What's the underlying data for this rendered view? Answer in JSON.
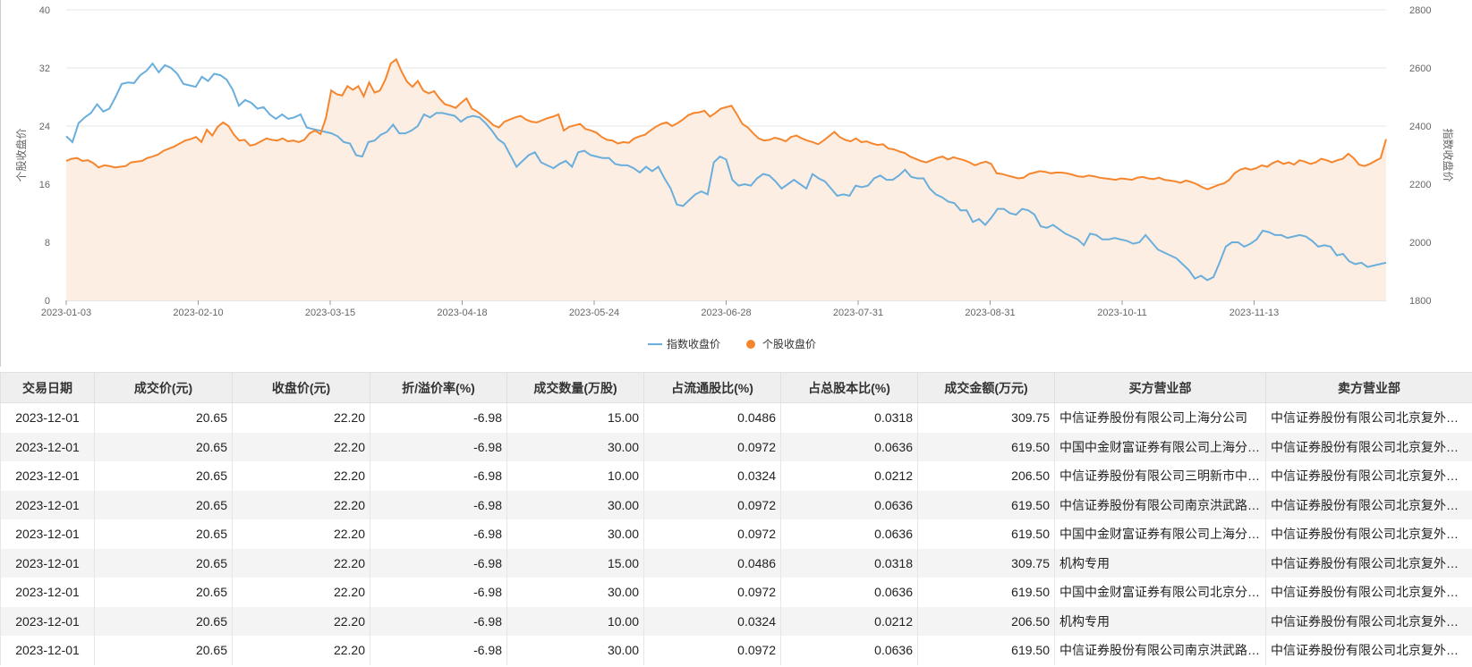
{
  "chart_data": {
    "type": "line",
    "x_ticks": [
      "2023-01-03",
      "2023-02-10",
      "2023-03-15",
      "2023-04-18",
      "2023-05-24",
      "2023-06-28",
      "2023-07-31",
      "2023-08-31",
      "2023-10-11",
      "2023-11-13"
    ],
    "ylabel_left": "个股收盘价",
    "ylabel_right": "指数收盘价",
    "ylim_left": [
      0,
      40
    ],
    "ylim_right": [
      1800,
      2800
    ],
    "yticks_left": [
      0,
      8,
      16,
      24,
      32,
      40
    ],
    "yticks_right": [
      1800,
      2000,
      2200,
      2400,
      2600,
      2800
    ],
    "legend_position": "bottom-center",
    "grid": true,
    "series": [
      {
        "name": "指数收盘价",
        "axis": "right",
        "color": "#6aaedc",
        "values": [
          2365,
          2345,
          2410,
          2430,
          2445,
          2475,
          2450,
          2460,
          2500,
          2545,
          2550,
          2548,
          2575,
          2590,
          2615,
          2585,
          2610,
          2600,
          2580,
          2545,
          2540,
          2535,
          2570,
          2555,
          2580,
          2575,
          2560,
          2525,
          2470,
          2490,
          2480,
          2460,
          2465,
          2440,
          2425,
          2440,
          2425,
          2430,
          2440,
          2395,
          2390,
          2385,
          2380,
          2375,
          2365,
          2345,
          2340,
          2300,
          2295,
          2345,
          2350,
          2370,
          2380,
          2405,
          2375,
          2375,
          2385,
          2400,
          2440,
          2430,
          2445,
          2445,
          2440,
          2435,
          2415,
          2430,
          2435,
          2430,
          2410,
          2385,
          2355,
          2340,
          2300,
          2260,
          2280,
          2300,
          2310,
          2275,
          2265,
          2255,
          2270,
          2280,
          2260,
          2310,
          2315,
          2300,
          2295,
          2290,
          2290,
          2270,
          2265,
          2265,
          2255,
          2240,
          2260,
          2245,
          2260,
          2220,
          2185,
          2130,
          2125,
          2145,
          2165,
          2175,
          2165,
          2275,
          2295,
          2285,
          2215,
          2195,
          2200,
          2195,
          2220,
          2235,
          2230,
          2210,
          2185,
          2200,
          2215,
          2200,
          2185,
          2235,
          2220,
          2210,
          2185,
          2160,
          2165,
          2160,
          2195,
          2190,
          2195,
          2220,
          2230,
          2215,
          2215,
          2230,
          2250,
          2225,
          2220,
          2220,
          2185,
          2165,
          2155,
          2140,
          2135,
          2110,
          2110,
          2070,
          2080,
          2060,
          2085,
          2115,
          2115,
          2100,
          2095,
          2115,
          2110,
          2095,
          2055,
          2050,
          2060,
          2045,
          2030,
          2020,
          2010,
          1990,
          2030,
          2025,
          2010,
          2010,
          2015,
          2010,
          2005,
          1995,
          2000,
          2025,
          2000,
          1975,
          1965,
          1955,
          1945,
          1925,
          1905,
          1875,
          1885,
          1870,
          1880,
          1930,
          1985,
          2000,
          2000,
          1985,
          1995,
          2010,
          2040,
          2035,
          2025,
          2025,
          2015,
          2020,
          2025,
          2020,
          2005,
          1985,
          1990,
          1985,
          1955,
          1960,
          1935,
          1925,
          1930,
          1915,
          1920,
          1925,
          1930
        ]
      },
      {
        "name": "个股收盘价",
        "axis": "left",
        "color": "#f5862e",
        "values": [
          19.2,
          19.5,
          19.6,
          19.2,
          19.3,
          18.9,
          18.3,
          18.6,
          18.5,
          18.3,
          18.4,
          18.5,
          19.0,
          19.1,
          19.2,
          19.6,
          19.8,
          20.1,
          20.6,
          20.9,
          21.2,
          21.6,
          22.0,
          22.2,
          22.5,
          21.8,
          23.5,
          22.7,
          23.9,
          24.5,
          24.0,
          22.8,
          22.0,
          22.1,
          21.3,
          21.5,
          21.9,
          22.3,
          22.1,
          22.0,
          22.3,
          21.9,
          22.0,
          21.8,
          22.1,
          23.0,
          23.4,
          22.9,
          25.1,
          28.9,
          28.4,
          28.2,
          29.5,
          29.0,
          29.5,
          28.1,
          30.0,
          28.6,
          28.9,
          30.4,
          32.6,
          33.2,
          31.5,
          30.1,
          29.4,
          30.2,
          28.9,
          28.5,
          28.8,
          27.8,
          27.0,
          26.8,
          26.5,
          27.2,
          27.8,
          26.4,
          26.0,
          25.4,
          24.8,
          24.1,
          23.8,
          24.6,
          24.9,
          25.2,
          25.4,
          24.9,
          24.6,
          24.5,
          24.8,
          25.1,
          25.3,
          25.6,
          23.4,
          23.9,
          24.1,
          24.3,
          23.6,
          23.4,
          23.1,
          22.5,
          22.1,
          22.0,
          21.6,
          21.8,
          21.7,
          22.3,
          22.6,
          22.8,
          23.4,
          23.9,
          24.3,
          24.5,
          24.0,
          24.4,
          24.9,
          25.5,
          25.8,
          25.9,
          26.1,
          25.3,
          25.8,
          26.4,
          26.6,
          26.8,
          25.6,
          24.3,
          23.8,
          23.0,
          22.3,
          22.0,
          22.1,
          22.4,
          22.2,
          21.9,
          22.5,
          22.7,
          22.3,
          22.0,
          21.8,
          21.5,
          22.0,
          22.6,
          23.2,
          22.5,
          22.1,
          21.9,
          22.3,
          21.8,
          21.9,
          21.6,
          21.4,
          21.5,
          20.9,
          20.8,
          20.5,
          20.3,
          19.8,
          19.5,
          19.2,
          19.0,
          19.3,
          19.6,
          19.8,
          19.4,
          19.7,
          19.5,
          19.3,
          19.0,
          18.6,
          18.9,
          19.1,
          18.8,
          17.5,
          17.4,
          17.2,
          17.0,
          16.8,
          16.9,
          17.4,
          17.6,
          17.8,
          17.7,
          17.5,
          17.6,
          17.6,
          17.5,
          17.3,
          17.1,
          17.0,
          17.2,
          17.1,
          16.9,
          16.8,
          16.7,
          16.6,
          16.8,
          16.7,
          16.6,
          16.9,
          17.0,
          16.8,
          16.7,
          16.9,
          16.6,
          16.5,
          16.4,
          16.2,
          16.5,
          16.3,
          16.0,
          15.6,
          15.3,
          15.6,
          15.9,
          16.1,
          16.6,
          17.5,
          18.0,
          18.2,
          18.0,
          18.2,
          18.6,
          18.4,
          18.9,
          19.2,
          18.8,
          19.0,
          18.7,
          19.3,
          19.1,
          18.8,
          19.0,
          19.5,
          19.3,
          19.0,
          19.3,
          19.5,
          20.2,
          19.6,
          18.7,
          18.5,
          18.8,
          19.2,
          19.6,
          22.2
        ]
      }
    ]
  },
  "table": {
    "headers": [
      "交易日期",
      "成交价(元)",
      "收盘价(元)",
      "折/溢价率(%)",
      "成交数量(万股)",
      "占流通股比(%)",
      "占总股本比(%)",
      "成交金额(万元)",
      "买方营业部",
      "卖方营业部"
    ],
    "rows": [
      [
        "2023-12-01",
        "20.65",
        "22.20",
        "-6.98",
        "15.00",
        "0.0486",
        "0.0318",
        "309.75",
        "中信证券股份有限公司上海分公司",
        "中信证券股份有限公司北京复外大街证券营业部"
      ],
      [
        "2023-12-01",
        "20.65",
        "22.20",
        "-6.98",
        "30.00",
        "0.0972",
        "0.0636",
        "619.50",
        "中国中金财富证券有限公司上海分公司",
        "中信证券股份有限公司北京复外大街证券营业部"
      ],
      [
        "2023-12-01",
        "20.65",
        "22.20",
        "-6.98",
        "10.00",
        "0.0324",
        "0.0212",
        "206.50",
        "中信证券股份有限公司三明新市中路证券营业部",
        "中信证券股份有限公司北京复外大街证券营业部"
      ],
      [
        "2023-12-01",
        "20.65",
        "22.20",
        "-6.98",
        "30.00",
        "0.0972",
        "0.0636",
        "619.50",
        "中信证券股份有限公司南京洪武路证券营业部",
        "中信证券股份有限公司北京复外大街证券营业部"
      ],
      [
        "2023-12-01",
        "20.65",
        "22.20",
        "-6.98",
        "30.00",
        "0.0972",
        "0.0636",
        "619.50",
        "中国中金财富证券有限公司上海分公司",
        "中信证券股份有限公司北京复外大街证券营业部"
      ],
      [
        "2023-12-01",
        "20.65",
        "22.20",
        "-6.98",
        "15.00",
        "0.0486",
        "0.0318",
        "309.75",
        "机构专用",
        "中信证券股份有限公司北京复外大街证券营业部"
      ],
      [
        "2023-12-01",
        "20.65",
        "22.20",
        "-6.98",
        "30.00",
        "0.0972",
        "0.0636",
        "619.50",
        "中国中金财富证券有限公司北京分公司",
        "中信证券股份有限公司北京复外大街证券营业部"
      ],
      [
        "2023-12-01",
        "20.65",
        "22.20",
        "-6.98",
        "10.00",
        "0.0324",
        "0.0212",
        "206.50",
        "机构专用",
        "中信证券股份有限公司北京复外大街证券营业部"
      ],
      [
        "2023-12-01",
        "20.65",
        "22.20",
        "-6.98",
        "30.00",
        "0.0972",
        "0.0636",
        "619.50",
        "中信证券股份有限公司南京洪武路证券营业部",
        "中信证券股份有限公司北京复外大街证券营业部"
      ]
    ]
  }
}
